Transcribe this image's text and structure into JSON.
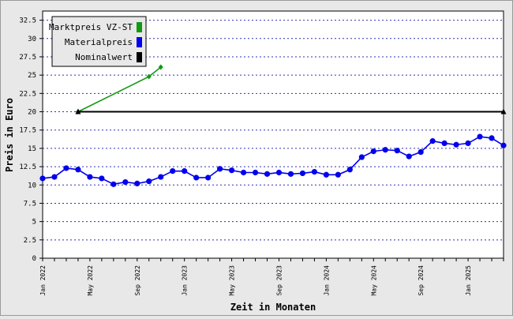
{
  "chart_data": {
    "type": "line",
    "xlabel": "Zeit in Monaten",
    "ylabel": "Preis in Euro",
    "ylim": [
      0,
      33.75
    ],
    "yticks": [
      0,
      2.5,
      5,
      7.5,
      10,
      12.5,
      15,
      17.5,
      20,
      22.5,
      25,
      27.5,
      30,
      32.5
    ],
    "ytick_labels": [
      "0",
      "2.5",
      "5",
      "7.5",
      "10",
      "12.5",
      "15",
      "17.5",
      "20",
      "22.5",
      "25",
      "27.5",
      "30",
      "32.5"
    ],
    "xlim": [
      "2022-01",
      "2025-04"
    ],
    "xtick_labels": [
      "Jan 2022",
      "May 2022",
      "Sep 2022",
      "Jan 2023",
      "May 2023",
      "Sep 2023",
      "Jan 2024",
      "May 2024",
      "Sep 2024",
      "Jan 2025"
    ],
    "xtick_months": [
      "2022-01",
      "2022-05",
      "2022-09",
      "2023-01",
      "2023-05",
      "2023-09",
      "2024-01",
      "2024-05",
      "2024-09",
      "2025-01"
    ],
    "grid": "horizontal dotted",
    "legend_position": "top-left",
    "series": [
      {
        "name": "Marktpreis VZ-ST",
        "color": "#119911",
        "marker": "diamond",
        "points": [
          [
            "2022-04",
            20
          ],
          [
            "2022-10",
            24.8
          ],
          [
            "2022-11",
            26.1
          ]
        ]
      },
      {
        "name": "Materialpreis",
        "color": "#0000ee",
        "marker": "circle",
        "points": [
          [
            "2022-01",
            10.9
          ],
          [
            "2022-02",
            11.1
          ],
          [
            "2022-03",
            12.3
          ],
          [
            "2022-04",
            12.1
          ],
          [
            "2022-05",
            11.1
          ],
          [
            "2022-06",
            10.9
          ],
          [
            "2022-07",
            10.1
          ],
          [
            "2022-08",
            10.4
          ],
          [
            "2022-09",
            10.2
          ],
          [
            "2022-10",
            10.5
          ],
          [
            "2022-11",
            11.1
          ],
          [
            "2022-12",
            11.9
          ],
          [
            "2023-01",
            11.9
          ],
          [
            "2023-02",
            11.0
          ],
          [
            "2023-03",
            11.0
          ],
          [
            "2023-04",
            12.2
          ],
          [
            "2023-05",
            12.0
          ],
          [
            "2023-06",
            11.7
          ],
          [
            "2023-07",
            11.7
          ],
          [
            "2023-08",
            11.5
          ],
          [
            "2023-09",
            11.7
          ],
          [
            "2023-10",
            11.5
          ],
          [
            "2023-11",
            11.6
          ],
          [
            "2023-12",
            11.8
          ],
          [
            "2024-01",
            11.4
          ],
          [
            "2024-02",
            11.4
          ],
          [
            "2024-03",
            12.1
          ],
          [
            "2024-04",
            13.8
          ],
          [
            "2024-05",
            14.6
          ],
          [
            "2024-06",
            14.8
          ],
          [
            "2024-07",
            14.7
          ],
          [
            "2024-08",
            13.9
          ],
          [
            "2024-09",
            14.5
          ],
          [
            "2024-10",
            16.0
          ],
          [
            "2024-11",
            15.7
          ],
          [
            "2024-12",
            15.5
          ],
          [
            "2025-01",
            15.7
          ],
          [
            "2025-02",
            16.6
          ],
          [
            "2025-03",
            16.4
          ],
          [
            "2025-04",
            15.4
          ]
        ]
      },
      {
        "name": "Nominalwert",
        "color": "#000000",
        "marker": "triangle",
        "points": [
          [
            "2022-04",
            20
          ],
          [
            "2025-04",
            20
          ]
        ]
      }
    ]
  }
}
